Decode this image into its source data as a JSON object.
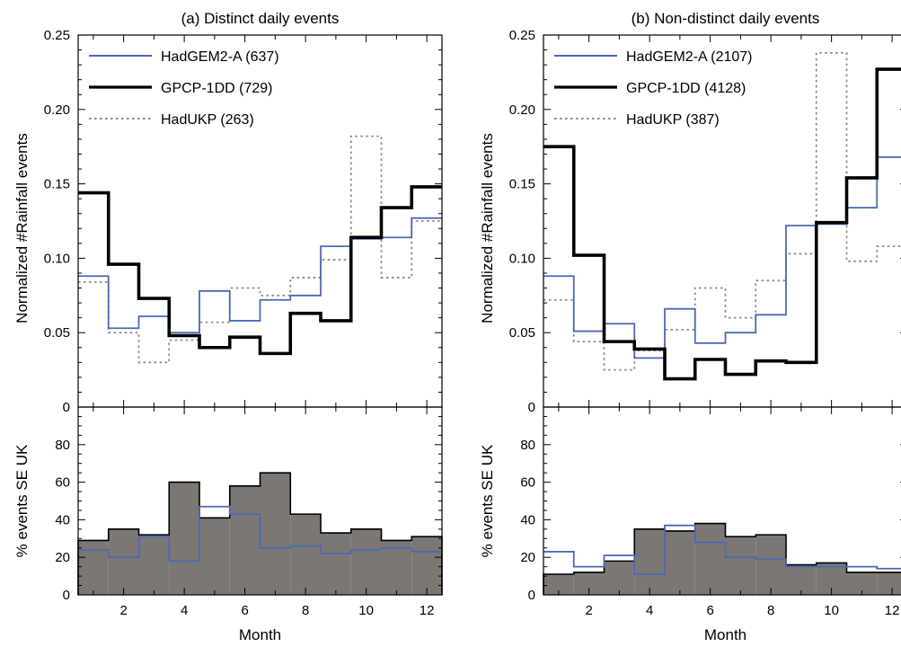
{
  "chart_data": [
    {
      "type": "line",
      "title": "(a) Distinct daily events",
      "xlabel": "Month",
      "ylabel": "Normalized #Rainfall events",
      "xlim": [
        0.5,
        12.5
      ],
      "ylim": [
        0,
        0.25
      ],
      "xticks": [
        2,
        4,
        6,
        8,
        10,
        12
      ],
      "yticks": [
        0,
        0.05,
        0.1,
        0.15,
        0.2,
        0.25
      ],
      "ytick_labels": [
        "0",
        "0.05",
        "0.10",
        "0.15",
        "0.20",
        "0.25"
      ],
      "step": true,
      "legend_position": "top-left",
      "x": [
        1,
        2,
        3,
        4,
        5,
        6,
        7,
        8,
        9,
        10,
        11,
        12
      ],
      "series": [
        {
          "name": "HadGEM2-A (637)",
          "color": "#4a6ab5",
          "style": "solid",
          "values": [
            0.088,
            0.053,
            0.061,
            0.05,
            0.078,
            0.058,
            0.072,
            0.075,
            0.108,
            0.113,
            0.114,
            0.127
          ]
        },
        {
          "name": "GPCP-1DD (729)",
          "color": "#000000",
          "style": "solid-thick",
          "values": [
            0.144,
            0.096,
            0.073,
            0.048,
            0.04,
            0.047,
            0.036,
            0.063,
            0.058,
            0.114,
            0.134,
            0.148
          ]
        },
        {
          "name": "HadUKP (263)",
          "color": "#8a8a8a",
          "style": "dotted",
          "values": [
            0.084,
            0.05,
            0.03,
            0.045,
            0.057,
            0.08,
            0.075,
            0.087,
            0.099,
            0.182,
            0.087,
            0.125
          ]
        }
      ]
    },
    {
      "type": "bar",
      "xlabel": "Month",
      "ylabel": "% events SE UK",
      "xlim": [
        0.5,
        12.5
      ],
      "ylim": [
        0,
        100
      ],
      "xticks": [
        2,
        4,
        6,
        8,
        10,
        12
      ],
      "yticks": [
        0,
        20,
        40,
        60,
        80
      ],
      "x": [
        1,
        2,
        3,
        4,
        5,
        6,
        7,
        8,
        9,
        10,
        11,
        12
      ],
      "series": [
        {
          "role": "bars",
          "color": "#7b7873",
          "values": [
            29,
            35,
            32,
            60,
            41,
            58,
            65,
            43,
            33,
            35,
            29,
            31
          ]
        },
        {
          "role": "line",
          "color": "#4a6ab5",
          "values": [
            24,
            20,
            31,
            18,
            47,
            43,
            25,
            26,
            22,
            24,
            25,
            23
          ]
        }
      ]
    },
    {
      "type": "line",
      "title": "(b) Non-distinct daily events",
      "xlabel": "Month",
      "ylabel": "Normalized #Rainfall events",
      "xlim": [
        0.5,
        12.5
      ],
      "ylim": [
        0,
        0.25
      ],
      "xticks": [
        2,
        4,
        6,
        8,
        10,
        12
      ],
      "yticks": [
        0,
        0.05,
        0.1,
        0.15,
        0.2,
        0.25
      ],
      "ytick_labels": [
        "0",
        "0.05",
        "0.10",
        "0.15",
        "0.20",
        "0.25"
      ],
      "step": true,
      "legend_position": "top-left",
      "x": [
        1,
        2,
        3,
        4,
        5,
        6,
        7,
        8,
        9,
        10,
        11,
        12
      ],
      "series": [
        {
          "name": "HadGEM2-A (2107)",
          "color": "#4a6ab5",
          "style": "solid",
          "values": [
            0.088,
            0.051,
            0.056,
            0.033,
            0.066,
            0.043,
            0.05,
            0.062,
            0.122,
            0.123,
            0.134,
            0.168
          ]
        },
        {
          "name": "GPCP-1DD (4128)",
          "color": "#000000",
          "style": "solid-thick",
          "values": [
            0.175,
            0.102,
            0.044,
            0.039,
            0.019,
            0.032,
            0.022,
            0.031,
            0.03,
            0.124,
            0.154,
            0.227
          ]
        },
        {
          "name": "HadUKP (387)",
          "color": "#8a8a8a",
          "style": "dotted",
          "values": [
            0.072,
            0.044,
            0.025,
            0.038,
            0.052,
            0.08,
            0.06,
            0.085,
            0.103,
            0.238,
            0.098,
            0.108
          ]
        }
      ]
    },
    {
      "type": "bar",
      "xlabel": "Month",
      "ylabel": "% events SE UK",
      "xlim": [
        0.5,
        12.5
      ],
      "ylim": [
        0,
        100
      ],
      "xticks": [
        2,
        4,
        6,
        8,
        10,
        12
      ],
      "xtick_labels": [
        "2",
        "4",
        "6",
        "8",
        "10",
        "12"
      ],
      "yticks": [
        0,
        20,
        40,
        60,
        80
      ],
      "x": [
        1,
        2,
        3,
        4,
        5,
        6,
        7,
        8,
        9,
        10,
        11,
        12
      ],
      "series": [
        {
          "role": "bars",
          "color": "#7b7873",
          "values": [
            11,
            12,
            18,
            35,
            34,
            38,
            31,
            32,
            16,
            17,
            12,
            12
          ]
        },
        {
          "role": "line",
          "color": "#4a6ab5",
          "values": [
            23,
            15,
            21,
            11,
            37,
            28,
            20,
            19,
            15,
            15,
            15,
            14
          ]
        }
      ]
    }
  ]
}
